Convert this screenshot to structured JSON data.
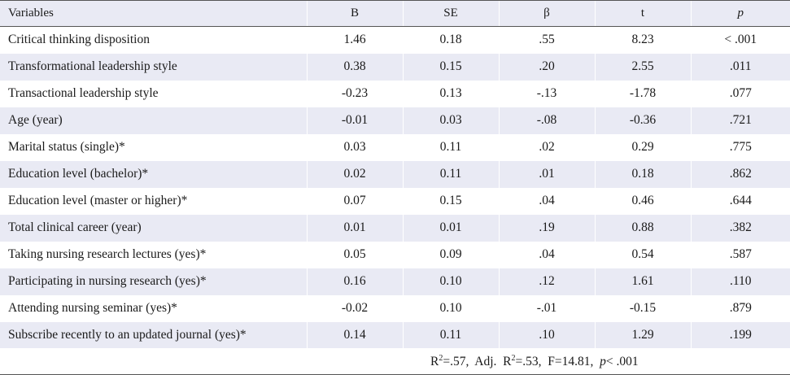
{
  "table": {
    "headers": [
      "Variables",
      "B",
      "SE",
      "β",
      "t",
      "p"
    ],
    "rows": [
      [
        "Critical thinking disposition",
        "1.46",
        "0.18",
        ".55",
        "8.23",
        "< .001"
      ],
      [
        "Transformational leadership style",
        "0.38",
        "0.15",
        ".20",
        "2.55",
        ".011"
      ],
      [
        "Transactional leadership style",
        "-0.23",
        "0.13",
        "-.13",
        "-1.78",
        ".077"
      ],
      [
        "Age (year)",
        "-0.01",
        "0.03",
        "-.08",
        "-0.36",
        ".721"
      ],
      [
        "Marital status (single)*",
        "0.03",
        "0.11",
        ".02",
        "0.29",
        ".775"
      ],
      [
        "Education level (bachelor)*",
        "0.02",
        "0.11",
        ".01",
        "0.18",
        ".862"
      ],
      [
        "Education level (master or higher)*",
        "0.07",
        "0.15",
        ".04",
        "0.46",
        ".644"
      ],
      [
        "Total clinical career (year)",
        "0.01",
        "0.01",
        ".19",
        "0.88",
        ".382"
      ],
      [
        "Taking nursing research lectures (yes)*",
        "0.05",
        "0.09",
        ".04",
        "0.54",
        ".587"
      ],
      [
        "Participating in nursing research (yes)*",
        "0.16",
        "0.10",
        ".12",
        "1.61",
        ".110"
      ],
      [
        "Attending nursing seminar (yes)*",
        "-0.02",
        "0.10",
        "-.01",
        "-0.15",
        ".879"
      ],
      [
        "Subscribe recently to an updated journal (yes)*",
        "0.14",
        "0.11",
        ".10",
        "1.29",
        ".199"
      ]
    ],
    "footer": {
      "r2_label": "R",
      "r2_sup": "2",
      "r2_value": "=.57,",
      "adj_label": "Adj.",
      "adj_r": "R",
      "adj_sup": "2",
      "adj_value": "=.53,",
      "f_stat": "F=14.81,",
      "p_label": "p",
      "p_value": "< .001"
    }
  },
  "colors": {
    "row_shade": "#e9eaf4",
    "rule": "#555555"
  }
}
